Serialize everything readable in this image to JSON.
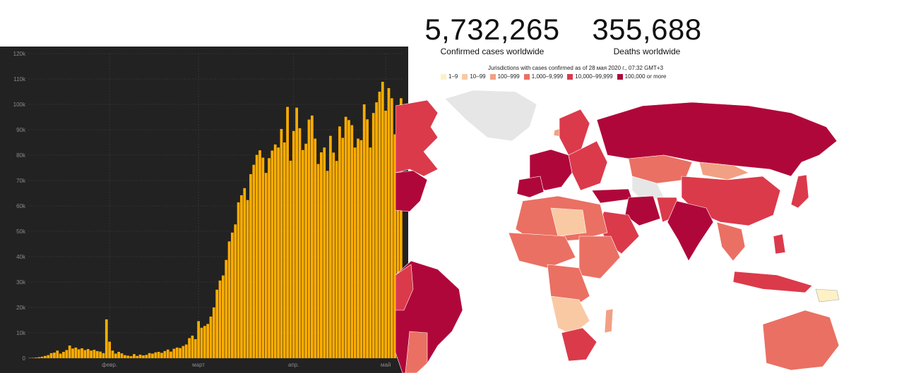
{
  "stats": {
    "confirmed": {
      "value": "5,732,265",
      "label": "Confirmed cases worldwide"
    },
    "deaths": {
      "value": "355,688",
      "label": "Deaths worldwide"
    }
  },
  "legend": {
    "title": "Jurisdictions with cases confirmed as of 28 мая 2020 г., 07:32 GMT+3",
    "items": [
      {
        "label": "1–9",
        "color": "#fdf1c5"
      },
      {
        "label": "10–99",
        "color": "#f9c9a4"
      },
      {
        "label": "100–999",
        "color": "#f2a083"
      },
      {
        "label": "1,000–9,999",
        "color": "#ea7063"
      },
      {
        "label": "10,000–99,999",
        "color": "#db3a4b"
      },
      {
        "label": "100,000 or more",
        "color": "#b0073a"
      }
    ]
  },
  "colors": {
    "bar": "#ffad00",
    "panel_bg": "#222222",
    "grid": "#3a3a3a",
    "tick_text": "#8a8a8a",
    "ocean": "#ffffff",
    "no_data": "#e6e6e6"
  },
  "chart_data": {
    "type": "bar",
    "ylim": [
      0,
      120000
    ],
    "grid": true,
    "y_ticks": [
      "0",
      "10k",
      "20k",
      "30k",
      "40k",
      "50k",
      "60k",
      "70k",
      "80k",
      "90k",
      "100k",
      "110k",
      "120k"
    ],
    "x_ticks": [
      {
        "label": "февр.",
        "index": 26
      },
      {
        "label": "март",
        "index": 55
      },
      {
        "label": "апр.",
        "index": 86
      },
      {
        "label": "май",
        "index": 116
      }
    ],
    "values": [
      100,
      150,
      250,
      400,
      600,
      900,
      1200,
      2000,
      2200,
      3000,
      1800,
      2500,
      3200,
      5000,
      3800,
      4200,
      3500,
      3900,
      3200,
      3600,
      3000,
      3300,
      2800,
      2600,
      2000,
      15300,
      6500,
      3000,
      1800,
      2500,
      1900,
      1200,
      1000,
      800,
      1600,
      900,
      1400,
      1100,
      1300,
      2000,
      1800,
      2300,
      2500,
      2100,
      2800,
      3400,
      2600,
      3700,
      4200,
      4000,
      4800,
      5400,
      7900,
      8900,
      7500,
      14600,
      12000,
      12700,
      13500,
      16400,
      20000,
      27000,
      30600,
      32600,
      38700,
      46000,
      49500,
      52700,
      61400,
      64200,
      67000,
      62300,
      72500,
      76200,
      80100,
      81900,
      79000,
      73000,
      78800,
      81800,
      84200,
      83000,
      90300,
      85000,
      99000,
      77800,
      89500,
      98700,
      90600,
      82000,
      84500,
      94000,
      95600,
      86500,
      76500,
      81100,
      83000,
      73800,
      87600,
      81000,
      77700,
      91300,
      86800,
      95100,
      93800,
      91800,
      83000,
      86500,
      85900,
      100000,
      94100,
      83000,
      96600,
      100800,
      105000,
      108900,
      97500,
      106400,
      102400,
      88200,
      95700,
      102400
    ]
  }
}
